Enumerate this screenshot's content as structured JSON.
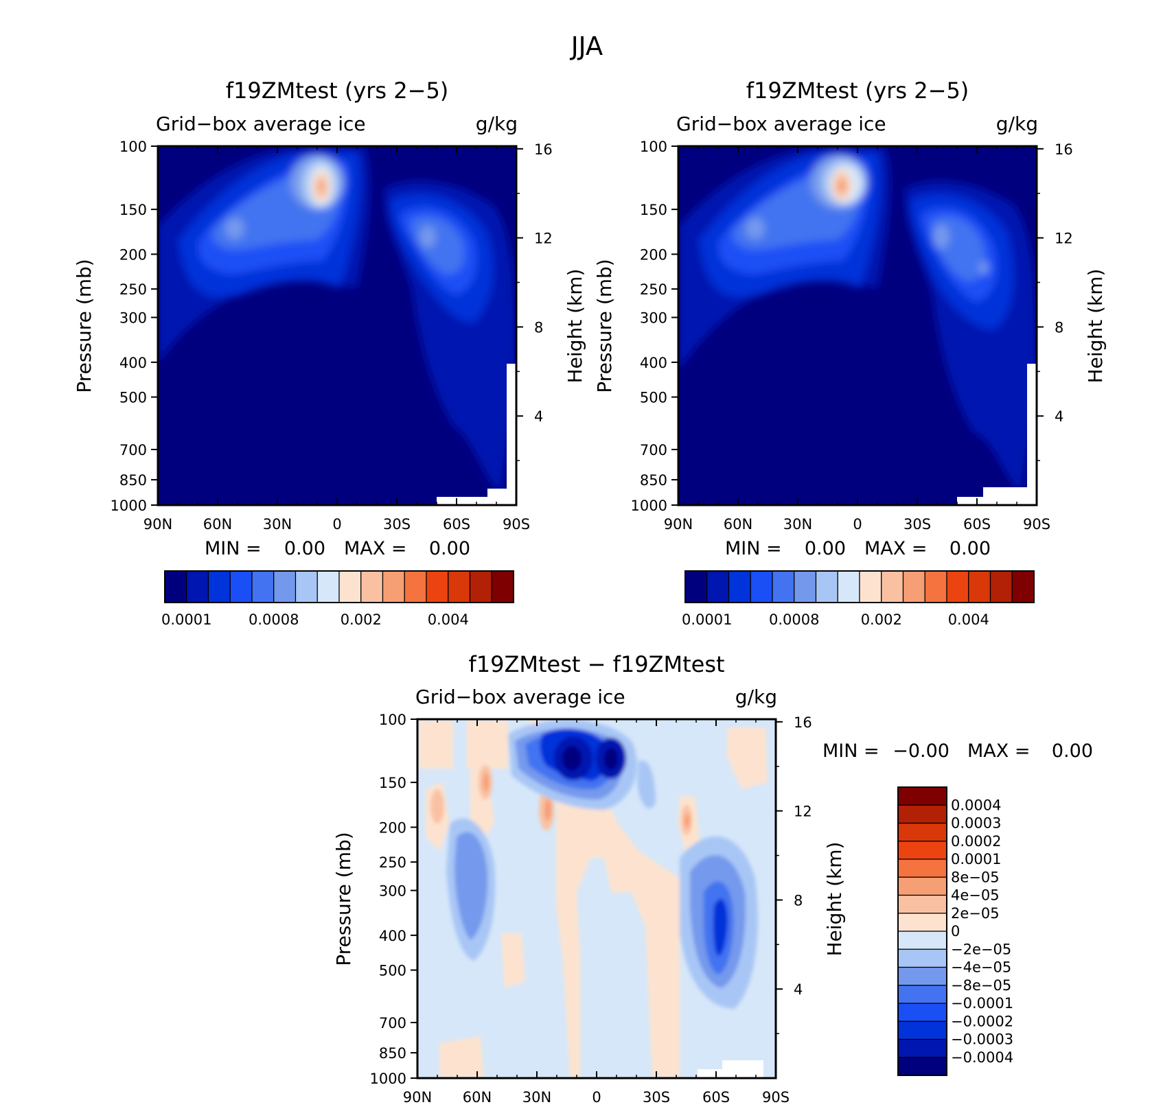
{
  "figure_title": "JJA",
  "chart_data": [
    {
      "type": "heatmap",
      "title": "f19ZMtest (yrs 2−5)",
      "left_string": "Grid−box average ice",
      "right_string": "g/kg",
      "xlabel": "",
      "ylabel": "Pressure (mb)",
      "ylabel_right": "Height (km)",
      "x_ticks": [
        "90N",
        "60N",
        "30N",
        "0",
        "30S",
        "60S",
        "90S"
      ],
      "y_ticks": [
        "100",
        "150",
        "200",
        "250",
        "300",
        "400",
        "500",
        "700",
        "850",
        "1000"
      ],
      "y2_ticks": [
        "16",
        "12",
        "8",
        "4"
      ],
      "min_label": "MIN =",
      "min_value": "0.00",
      "max_label": "MAX =",
      "max_value": "0.00",
      "colorbar_labels": [
        "0.0001",
        "0.0008",
        "0.002",
        "0.004"
      ],
      "colors": [
        "#00007f",
        "#0016b0",
        "#0033d9",
        "#1a4ff5",
        "#4373f0",
        "#7499ec",
        "#a8c6f5",
        "#d6e7f9",
        "#fde3cf",
        "#f9c1a2",
        "#f69e74",
        "#f5733f",
        "#ec4410",
        "#d93808",
        "#b22005",
        "#7f0000"
      ],
      "blobs": [
        {
          "lat": -8,
          "p": 200,
          "rx": 8,
          "ry": 120,
          "level": 15
        },
        {
          "lat": -8,
          "p": 190,
          "rx": 13,
          "ry": 170,
          "level": 12
        },
        {
          "lat": -8,
          "p": 180,
          "rx": 18,
          "ry": 200,
          "level": 10
        },
        {
          "lat": -58,
          "p": 330,
          "rx": 26,
          "ry": 230,
          "level": 8
        },
        {
          "lat": 40,
          "p": 380,
          "rx": 22,
          "ry": 260,
          "level": 8
        }
      ]
    },
    {
      "type": "heatmap",
      "title": "f19ZMtest (yrs 2−5)",
      "left_string": "Grid−box average ice",
      "right_string": "g/kg",
      "xlabel": "",
      "ylabel": "Pressure (mb)",
      "ylabel_right": "Height (km)",
      "x_ticks": [
        "90N",
        "60N",
        "30N",
        "0",
        "30S",
        "60S",
        "90S"
      ],
      "y_ticks": [
        "100",
        "150",
        "200",
        "250",
        "300",
        "400",
        "500",
        "700",
        "850",
        "1000"
      ],
      "y2_ticks": [
        "16",
        "12",
        "8",
        "4"
      ],
      "min_label": "MIN =",
      "min_value": "0.00",
      "max_label": "MAX =",
      "max_value": "0.00",
      "colorbar_labels": [
        "0.0001",
        "0.0008",
        "0.002",
        "0.004"
      ],
      "colors": [
        "#00007f",
        "#0016b0",
        "#0033d9",
        "#1a4ff5",
        "#4373f0",
        "#7499ec",
        "#a8c6f5",
        "#d6e7f9",
        "#fde3cf",
        "#f9c1a2",
        "#f69e74",
        "#f5733f",
        "#ec4410",
        "#d93808",
        "#b22005",
        "#7f0000"
      ],
      "blobs": [
        {
          "lat": -8,
          "p": 200,
          "rx": 8,
          "ry": 120,
          "level": 15
        },
        {
          "lat": -8,
          "p": 190,
          "rx": 13,
          "ry": 170,
          "level": 12
        },
        {
          "lat": -8,
          "p": 180,
          "rx": 18,
          "ry": 200,
          "level": 10
        },
        {
          "lat": -58,
          "p": 330,
          "rx": 26,
          "ry": 230,
          "level": 8
        },
        {
          "lat": 40,
          "p": 380,
          "rx": 22,
          "ry": 260,
          "level": 8
        }
      ]
    },
    {
      "type": "heatmap",
      "title": "f19ZMtest − f19ZMtest",
      "left_string": "Grid−box average ice",
      "right_string": "g/kg",
      "xlabel": "",
      "ylabel": "Pressure (mb)",
      "ylabel_right": "Height (km)",
      "x_ticks": [
        "90N",
        "60N",
        "30N",
        "0",
        "30S",
        "60S",
        "90S"
      ],
      "y_ticks": [
        "100",
        "150",
        "200",
        "250",
        "300",
        "400",
        "500",
        "700",
        "850",
        "1000"
      ],
      "y2_ticks": [
        "16",
        "12",
        "8",
        "4"
      ],
      "min_label": "MIN =",
      "min_value": "−0.00",
      "max_label": "MAX =",
      "max_value": "0.00",
      "colorbar_labels": [
        "0.0004",
        "0.0003",
        "0.0002",
        "0.0001",
        "8e−05",
        "4e−05",
        "2e−05",
        "0",
        "−2e−05",
        "−4e−05",
        "−8e−05",
        "−0.0001",
        "−0.0002",
        "−0.0003",
        "−0.0004"
      ],
      "colors": [
        "#7f0000",
        "#b22005",
        "#d93808",
        "#ec4410",
        "#f5733f",
        "#f69e74",
        "#f9c1a2",
        "#fde3cf",
        "#d6e7f9",
        "#a8c6f5",
        "#7499ec",
        "#4373f0",
        "#1a4ff5",
        "#0033d9",
        "#0016b0",
        "#00007f"
      ]
    }
  ]
}
